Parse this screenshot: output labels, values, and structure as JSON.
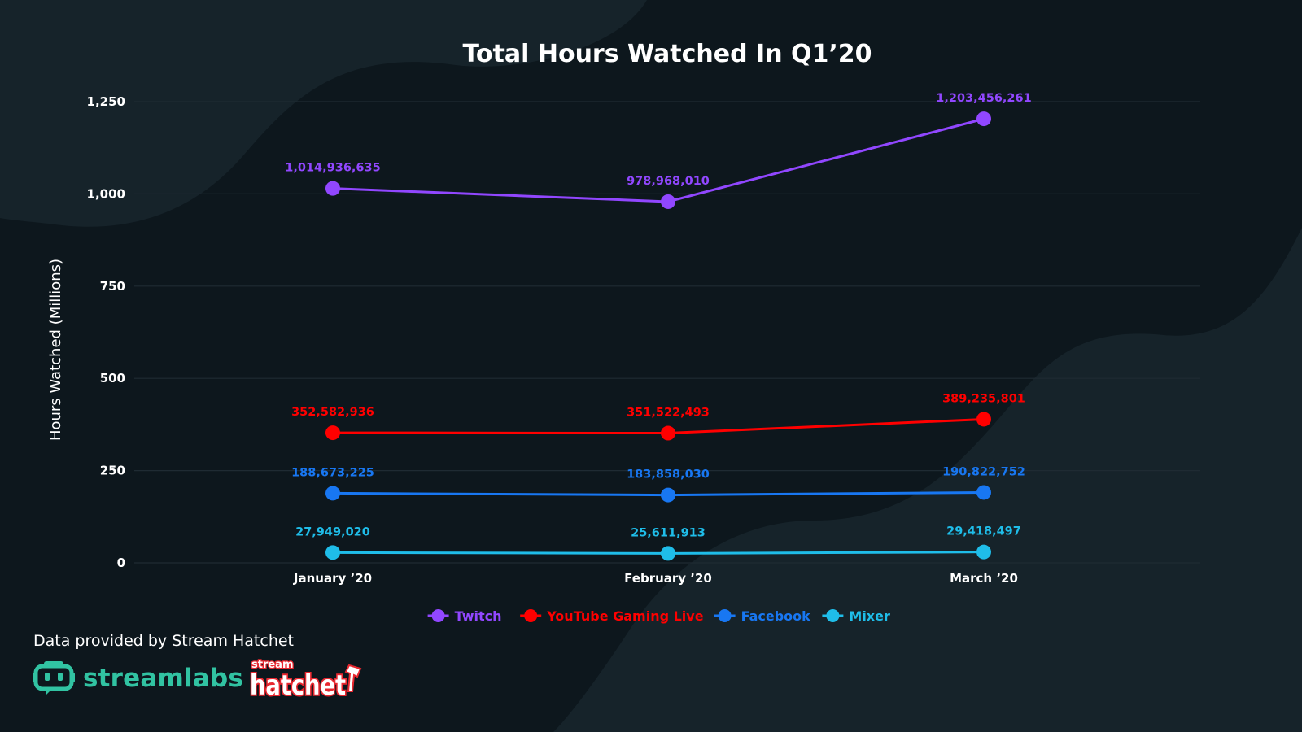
{
  "chart_data": {
    "type": "line",
    "title": "Total Hours Watched In Q1’20",
    "xlabel": "",
    "ylabel": "Hours Watched (Millions)",
    "ylim": [
      0,
      1250
    ],
    "yticks": [
      0,
      250,
      500,
      750,
      1000,
      1250
    ],
    "ytick_labels": [
      "0",
      "250",
      "500",
      "750",
      "1,000",
      "1,250"
    ],
    "categories": [
      "January ’20",
      "February ’20",
      "March ’20"
    ],
    "grid": true,
    "legend_position": "bottom",
    "series": [
      {
        "name": "Twitch",
        "color": "#9147ff",
        "values": [
          1014.936635,
          978.96801,
          1203.456261
        ],
        "labels": [
          "1,014,936,635",
          "978,968,010",
          "1,203,456,261"
        ]
      },
      {
        "name": "YouTube Gaming Live",
        "color": "#ff0000",
        "values": [
          352.582936,
          351.522493,
          389.235801
        ],
        "labels": [
          "352,582,936",
          "351,522,493",
          "389,235,801"
        ]
      },
      {
        "name": "Facebook",
        "color": "#1877f2",
        "values": [
          188.673225,
          183.85803,
          190.822752
        ],
        "labels": [
          "188,673,225",
          "183,858,030",
          "190,822,752"
        ]
      },
      {
        "name": "Mixer",
        "color": "#1fbde9",
        "values": [
          27.94902,
          25.611913,
          29.418497
        ],
        "labels": [
          "27,949,020",
          "25,611,913",
          "29,418,497"
        ]
      }
    ]
  },
  "footer": {
    "credit": "Data provided by Stream Hatchet",
    "brand_streamlabs": "streamlabs",
    "brand_hatchet_small": "stream",
    "brand_hatchet_big": "hatchet"
  },
  "colors": {
    "background": "#0d171d",
    "grid": "#1f2b33",
    "streamlabs": "#31c3a2",
    "hatchet": "#e8272f"
  }
}
